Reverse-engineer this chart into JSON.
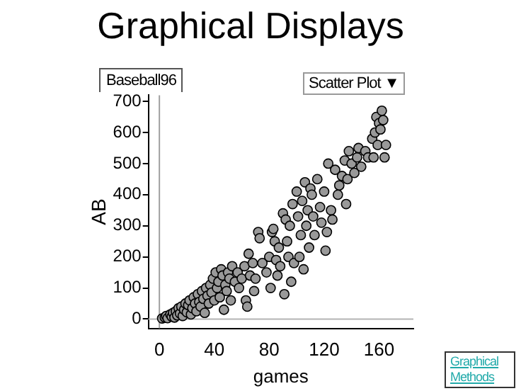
{
  "chart_data": {
    "type": "scatter",
    "title": "Graphical Displays",
    "xlabel": "games",
    "ylabel": "AB",
    "annotations": [
      "Baseball96",
      "Scatter Plot ▼",
      "Graphical Methods"
    ],
    "xlim": [
      -8,
      185
    ],
    "ylim": [
      -30,
      720
    ],
    "xticks": [
      0,
      40,
      80,
      120,
      160
    ],
    "yticks": [
      0,
      100,
      200,
      300,
      400,
      500,
      600,
      700
    ],
    "grid": false,
    "legend": false,
    "marker": "circle",
    "ref_lines": [
      {
        "axis": "x",
        "value": 0,
        "color": "#a0a0a0"
      },
      {
        "axis": "y",
        "value": 0,
        "color": "#b4b4b4"
      }
    ],
    "series": [
      {
        "color": "#999999",
        "x": [
          2,
          4,
          5,
          6,
          8,
          9,
          10,
          11,
          12,
          13,
          14,
          15,
          16,
          17,
          18,
          19,
          20,
          21,
          22,
          23,
          24,
          25,
          26,
          27,
          28,
          29,
          30,
          31,
          32,
          33,
          34,
          35,
          36,
          37,
          38,
          39,
          40,
          41,
          42,
          43,
          44,
          45,
          46,
          47,
          48,
          49,
          50,
          51,
          52,
          53,
          55,
          57,
          58,
          60,
          62,
          63,
          64,
          65,
          66,
          68,
          69,
          70,
          72,
          73,
          75,
          78,
          80,
          81,
          82,
          83,
          84,
          85,
          86,
          87,
          88,
          90,
          91,
          92,
          93,
          94,
          95,
          96,
          97,
          98,
          100,
          101,
          102,
          103,
          104,
          105,
          106,
          107,
          108,
          109,
          110,
          111,
          112,
          113,
          115,
          117,
          118,
          120,
          121,
          122,
          123,
          125,
          126,
          128,
          130,
          131,
          133,
          135,
          136,
          137,
          138,
          140,
          142,
          144,
          145,
          147,
          150,
          152,
          155,
          156,
          157,
          158,
          159,
          160,
          161,
          162,
          163,
          164,
          165
        ],
        "values": [
          2,
          5,
          10,
          3,
          15,
          8,
          20,
          5,
          25,
          12,
          35,
          18,
          40,
          10,
          30,
          50,
          22,
          45,
          60,
          15,
          35,
          70,
          50,
          25,
          80,
          55,
          40,
          90,
          65,
          20,
          100,
          75,
          50,
          110,
          85,
          130,
          60,
          150,
          100,
          120,
          70,
          160,
          140,
          30,
          110,
          90,
          150,
          130,
          60,
          170,
          120,
          150,
          100,
          130,
          170,
          60,
          40,
          210,
          140,
          180,
          90,
          130,
          280,
          260,
          180,
          150,
          200,
          100,
          280,
          290,
          250,
          190,
          140,
          230,
          170,
          340,
          80,
          320,
          250,
          200,
          300,
          120,
          370,
          180,
          410,
          330,
          200,
          270,
          380,
          160,
          440,
          300,
          350,
          230,
          420,
          400,
          330,
          270,
          450,
          360,
          310,
          410,
          220,
          280,
          500,
          350,
          320,
          480,
          400,
          430,
          460,
          510,
          370,
          450,
          540,
          500,
          470,
          520,
          550,
          490,
          540,
          520,
          580,
          520,
          600,
          650,
          560,
          630,
          610,
          670,
          640,
          520,
          560
        ]
      }
    ]
  }
}
